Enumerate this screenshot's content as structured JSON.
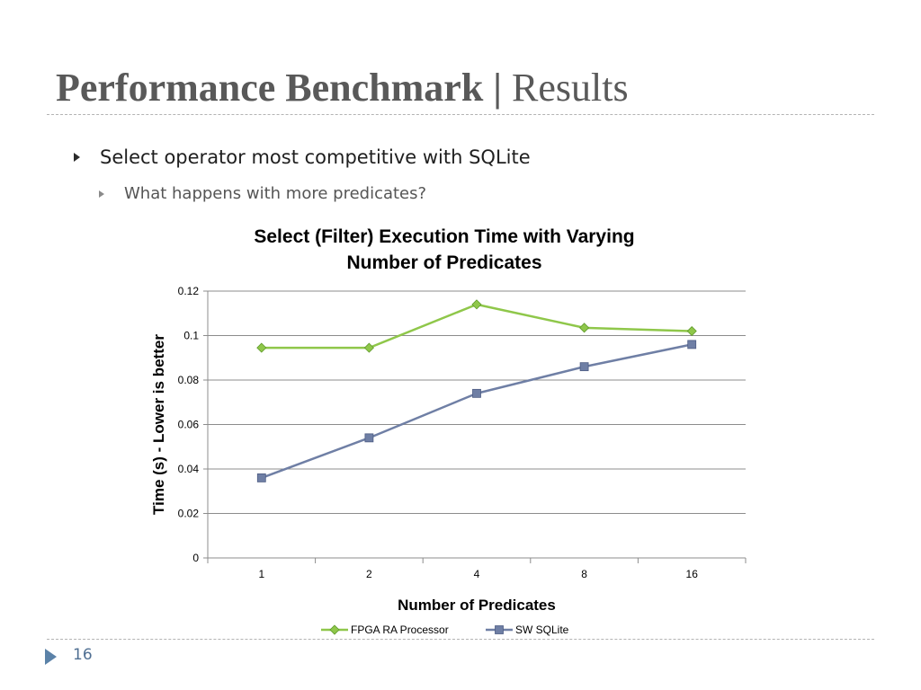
{
  "slide": {
    "title_bold": "Performance Benchmark |",
    "title_light": "Results",
    "bullets": [
      {
        "text": "Select operator most competitive with SQLite"
      },
      {
        "text": "What happens with more predicates?"
      }
    ],
    "page_number": "16"
  },
  "chart_data": {
    "type": "line",
    "title_line1": "Select (Filter) Execution Time with Varying",
    "title_line2": "Number of Predicates",
    "xlabel": "Number of Predicates",
    "ylabel": "Time (s) - Lower is better",
    "categories": [
      "1",
      "2",
      "4",
      "8",
      "16"
    ],
    "ylim": [
      0,
      0.12
    ],
    "yticks": [
      0,
      0.02,
      0.04,
      0.06,
      0.08,
      0.1,
      0.12
    ],
    "ytick_labels": [
      "0",
      "0.02",
      "0.04",
      "0.06",
      "0.08",
      "0.1",
      "0.12"
    ],
    "grid": true,
    "legend_position": "bottom",
    "series": [
      {
        "name": "FPGA RA Processor",
        "values": [
          0.0945,
          0.0945,
          0.114,
          0.1035,
          0.102
        ],
        "color": "#8fc74a",
        "marker": "diamond"
      },
      {
        "name": "SW SQLite",
        "values": [
          0.036,
          0.054,
          0.074,
          0.086,
          0.096
        ],
        "color": "#6f7fa5",
        "marker": "square"
      }
    ]
  }
}
